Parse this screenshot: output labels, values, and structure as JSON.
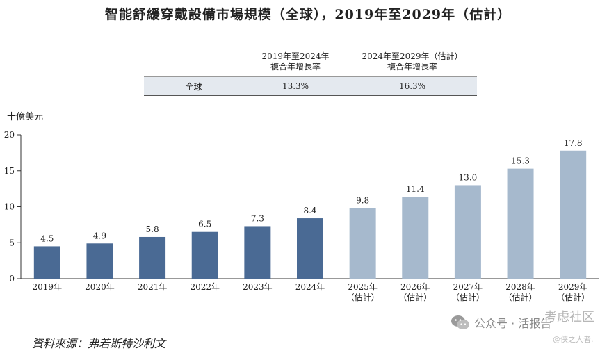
{
  "title": "智能舒緩穿戴設備市場規模（全球），2019年至2029年（估計）",
  "cagr_table": {
    "col1_line1": "2019年至2024年",
    "col1_line2": "複合年增長率",
    "col2_line1": "2024年至2029年（估計）",
    "col2_line2": "複合年增長率",
    "row_label": "全球",
    "row_value1": "13.3%",
    "row_value2": "16.3%"
  },
  "unit_label": "十億美元",
  "source": "資料來源：弗若斯特沙利文",
  "watermark": {
    "account": "公众号 · 活报告",
    "site": "考虑社区",
    "handle": "@侠之大者."
  },
  "colors": {
    "actual": "#4a6a94",
    "estimate": "#a6b9cd",
    "axis": "#333333"
  },
  "chart_data": {
    "type": "bar",
    "title": "智能舒緩穿戴設備市場規模（全球），2019年至2029年（估計）",
    "ylabel": "十億美元",
    "ylim": [
      0,
      20
    ],
    "yticks": [
      0,
      5,
      10,
      15,
      20
    ],
    "categories": [
      [
        "2019年"
      ],
      [
        "2020年"
      ],
      [
        "2021年"
      ],
      [
        "2022年"
      ],
      [
        "2023年"
      ],
      [
        "2024年"
      ],
      [
        "2025年",
        "（估計）"
      ],
      [
        "2026年",
        "（估計）"
      ],
      [
        "2027年",
        "（估計）"
      ],
      [
        "2028年",
        "（估計）"
      ],
      [
        "2029年",
        "（估計）"
      ]
    ],
    "values": [
      4.5,
      4.9,
      5.8,
      6.5,
      7.3,
      8.4,
      9.8,
      11.4,
      13.0,
      15.3,
      17.8
    ],
    "value_labels": [
      "4.5",
      "4.9",
      "5.8",
      "6.5",
      "7.3",
      "8.4",
      "9.8",
      "11.4",
      "13.0",
      "15.3",
      "17.8"
    ],
    "estimated": [
      false,
      false,
      false,
      false,
      false,
      false,
      true,
      true,
      true,
      true,
      true
    ]
  }
}
